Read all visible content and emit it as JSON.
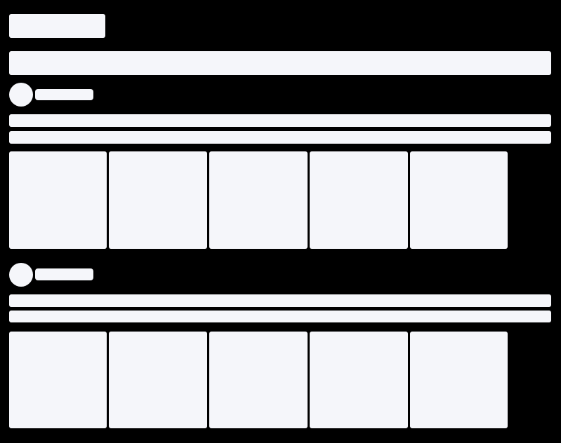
{
  "state": "loading-skeleton",
  "colors": {
    "background": "#000000",
    "placeholder": "#f5f6fa"
  },
  "sections": [
    {
      "cards": 5
    },
    {
      "cards": 5
    }
  ]
}
